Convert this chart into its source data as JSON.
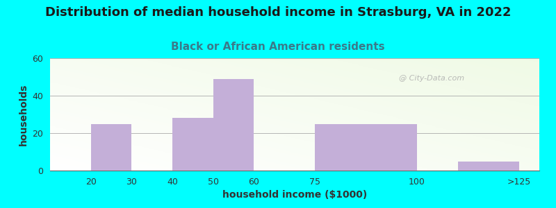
{
  "title": "Distribution of median household income in Strasburg, VA in 2022",
  "subtitle": "Black or African American residents",
  "xlabel": "household income ($1000)",
  "ylabel": "households",
  "bar_lefts": [
    10,
    20,
    30,
    40,
    50,
    60,
    75,
    100,
    110
  ],
  "bar_widths": [
    10,
    10,
    10,
    10,
    10,
    15,
    25,
    10,
    15
  ],
  "values": [
    0,
    25,
    0,
    28,
    49,
    0,
    25,
    0,
    5
  ],
  "xtick_positions": [
    20,
    30,
    40,
    50,
    60,
    75,
    100,
    125
  ],
  "xtick_labels": [
    "20",
    "30",
    "40",
    "50",
    "60",
    "75",
    "100",
    ">125"
  ],
  "bar_color": "#c4afd8",
  "background_color": "#00ffff",
  "ylim": [
    0,
    60
  ],
  "xlim": [
    10,
    130
  ],
  "yticks": [
    0,
    20,
    40,
    60
  ],
  "title_fontsize": 13,
  "subtitle_fontsize": 11,
  "axis_label_fontsize": 10,
  "tick_fontsize": 9,
  "watermark": "@ City-Data.com"
}
